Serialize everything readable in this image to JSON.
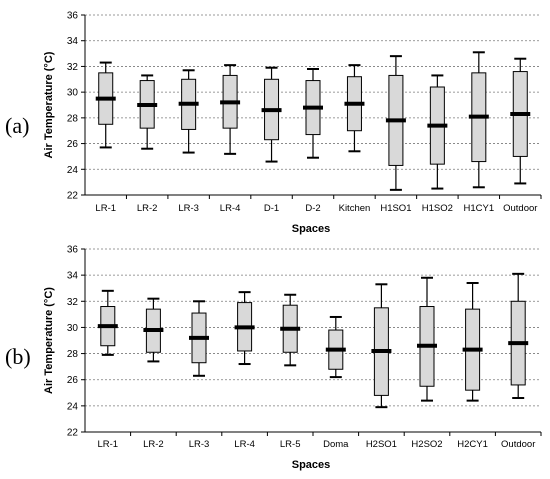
{
  "chart_data": [
    {
      "type": "box",
      "panel_label": "(a)",
      "xlabel": "Spaces",
      "ylabel": "Air Temperature (°C)",
      "ylim": [
        22,
        36
      ],
      "yticks": [
        22,
        24,
        26,
        28,
        30,
        32,
        34,
        36
      ],
      "grid": "horizontal-dashed",
      "categories": [
        "LR-1",
        "LR-2",
        "LR-3",
        "LR-4",
        "D-1",
        "D-2",
        "Kitchen",
        "H1SO1",
        "H1SO2",
        "H1CY1",
        "Outdoor"
      ],
      "boxes": [
        {
          "min": 25.7,
          "q1": 27.5,
          "median": 29.5,
          "q3": 31.5,
          "max": 32.3
        },
        {
          "min": 25.6,
          "q1": 27.2,
          "median": 29.0,
          "q3": 30.9,
          "max": 31.3
        },
        {
          "min": 25.3,
          "q1": 27.1,
          "median": 29.1,
          "q3": 31.0,
          "max": 31.7
        },
        {
          "min": 25.2,
          "q1": 27.2,
          "median": 29.2,
          "q3": 31.3,
          "max": 32.1
        },
        {
          "min": 24.6,
          "q1": 26.3,
          "median": 28.6,
          "q3": 31.0,
          "max": 31.9
        },
        {
          "min": 24.9,
          "q1": 26.7,
          "median": 28.8,
          "q3": 30.9,
          "max": 31.8
        },
        {
          "min": 25.4,
          "q1": 27.0,
          "median": 29.1,
          "q3": 31.2,
          "max": 32.1
        },
        {
          "min": 22.4,
          "q1": 24.3,
          "median": 27.8,
          "q3": 31.3,
          "max": 32.8
        },
        {
          "min": 22.5,
          "q1": 24.4,
          "median": 27.4,
          "q3": 30.4,
          "max": 31.3
        },
        {
          "min": 22.6,
          "q1": 24.6,
          "median": 28.1,
          "q3": 31.5,
          "max": 33.1
        },
        {
          "min": 22.9,
          "q1": 25.0,
          "median": 28.3,
          "q3": 31.6,
          "max": 32.6
        }
      ]
    },
    {
      "type": "box",
      "panel_label": "(b)",
      "xlabel": "Spaces",
      "ylabel": "Air Temperature (°C)",
      "ylim": [
        22,
        36
      ],
      "yticks": [
        22,
        24,
        26,
        28,
        30,
        32,
        34,
        36
      ],
      "grid": "horizontal-dashed",
      "categories": [
        "LR-1",
        "LR-2",
        "LR-3",
        "LR-4",
        "LR-5",
        "Doma",
        "H2SO1",
        "H2SO2",
        "H2CY1",
        "Outdoor"
      ],
      "boxes": [
        {
          "min": 27.9,
          "q1": 28.6,
          "median": 30.1,
          "q3": 31.6,
          "max": 32.8
        },
        {
          "min": 27.4,
          "q1": 28.1,
          "median": 29.8,
          "q3": 31.4,
          "max": 32.2
        },
        {
          "min": 26.3,
          "q1": 27.3,
          "median": 29.2,
          "q3": 31.1,
          "max": 32.0
        },
        {
          "min": 27.2,
          "q1": 28.2,
          "median": 30.0,
          "q3": 31.9,
          "max": 32.7
        },
        {
          "min": 27.1,
          "q1": 28.1,
          "median": 29.9,
          "q3": 31.7,
          "max": 32.5
        },
        {
          "min": 26.2,
          "q1": 26.8,
          "median": 28.3,
          "q3": 29.8,
          "max": 30.8
        },
        {
          "min": 23.9,
          "q1": 24.8,
          "median": 28.2,
          "q3": 31.5,
          "max": 33.3
        },
        {
          "min": 24.4,
          "q1": 25.5,
          "median": 28.6,
          "q3": 31.6,
          "max": 33.8
        },
        {
          "min": 24.4,
          "q1": 25.2,
          "median": 28.3,
          "q3": 31.4,
          "max": 33.4
        },
        {
          "min": 24.6,
          "q1": 25.6,
          "median": 28.8,
          "q3": 32.0,
          "max": 34.1
        }
      ]
    }
  ]
}
